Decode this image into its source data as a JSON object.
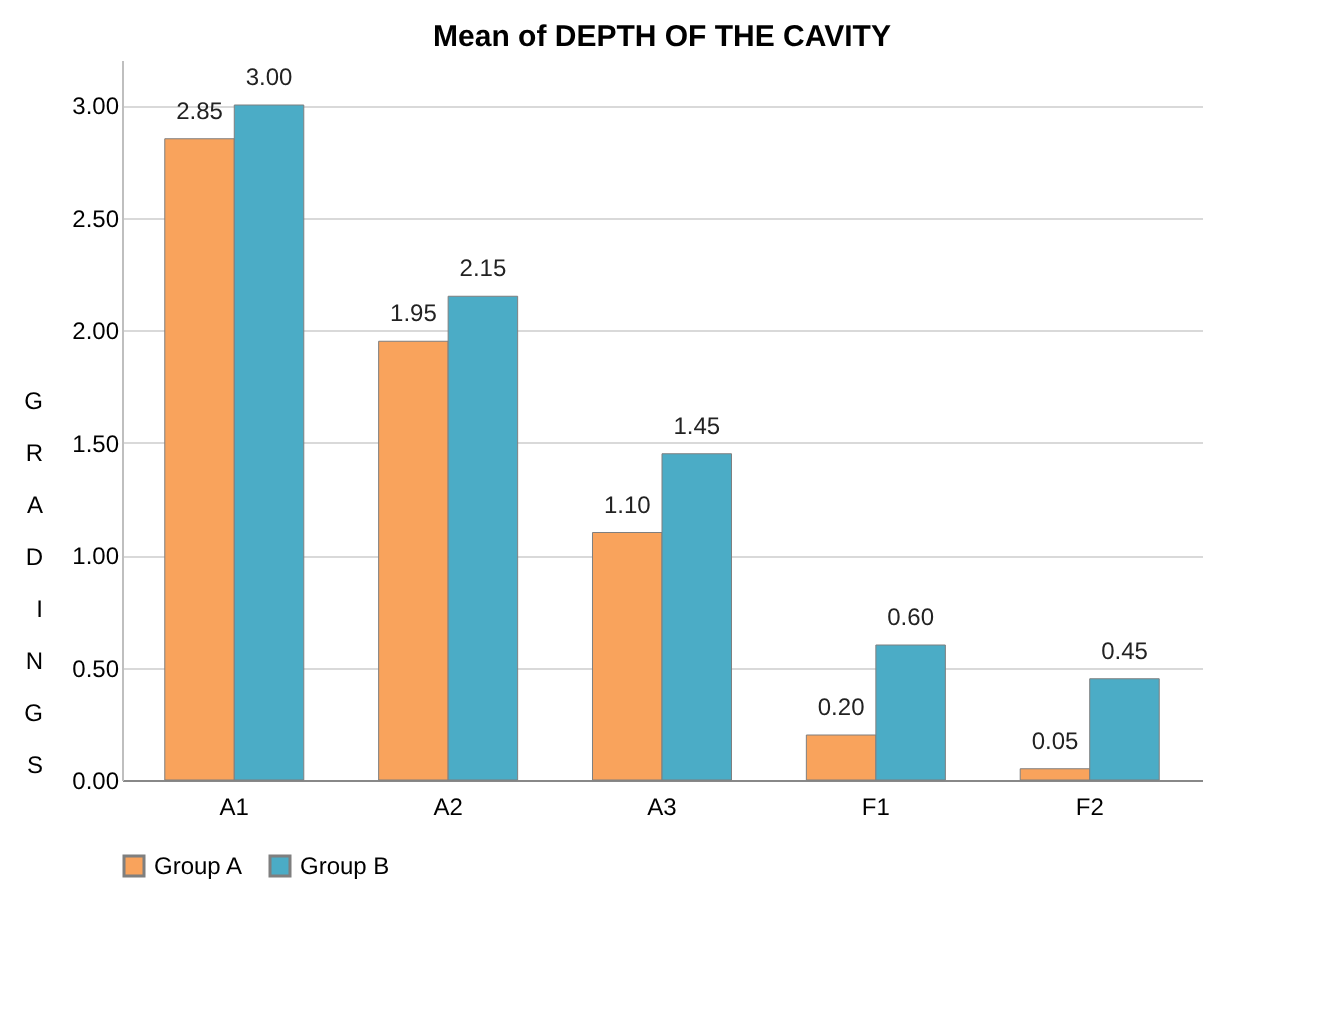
{
  "chart_data": {
    "type": "bar",
    "title": "Mean of DEPTH OF THE CAVITY",
    "ylabel": "GRADINGS",
    "categories": [
      "A1",
      "A2",
      "A3",
      "F1",
      "F2"
    ],
    "series": [
      {
        "name": "Group A",
        "color": "#f9a35c",
        "values": [
          2.85,
          1.95,
          1.1,
          0.2,
          0.05
        ],
        "value_labels": [
          "2.85",
          "1.95",
          "1.10",
          "0.20",
          "0.05"
        ]
      },
      {
        "name": "Group B",
        "color": "#4bacc6",
        "values": [
          3.0,
          2.15,
          1.45,
          0.6,
          0.45
        ],
        "value_labels": [
          "3.00",
          "2.15",
          "1.45",
          "0.60",
          "0.45"
        ]
      }
    ],
    "ylim": [
      0,
      3.2
    ],
    "yticks": [
      {
        "value": 0,
        "label": "0.00"
      },
      {
        "value": 0.5,
        "label": "0.50"
      },
      {
        "value": 1,
        "label": "1.00"
      },
      {
        "value": 1.5,
        "label": "1.50"
      },
      {
        "value": 2,
        "label": "2.00"
      },
      {
        "value": 2.5,
        "label": "2.50"
      },
      {
        "value": 3,
        "label": "3.00"
      }
    ],
    "grid": "y",
    "legend": "bottom"
  }
}
